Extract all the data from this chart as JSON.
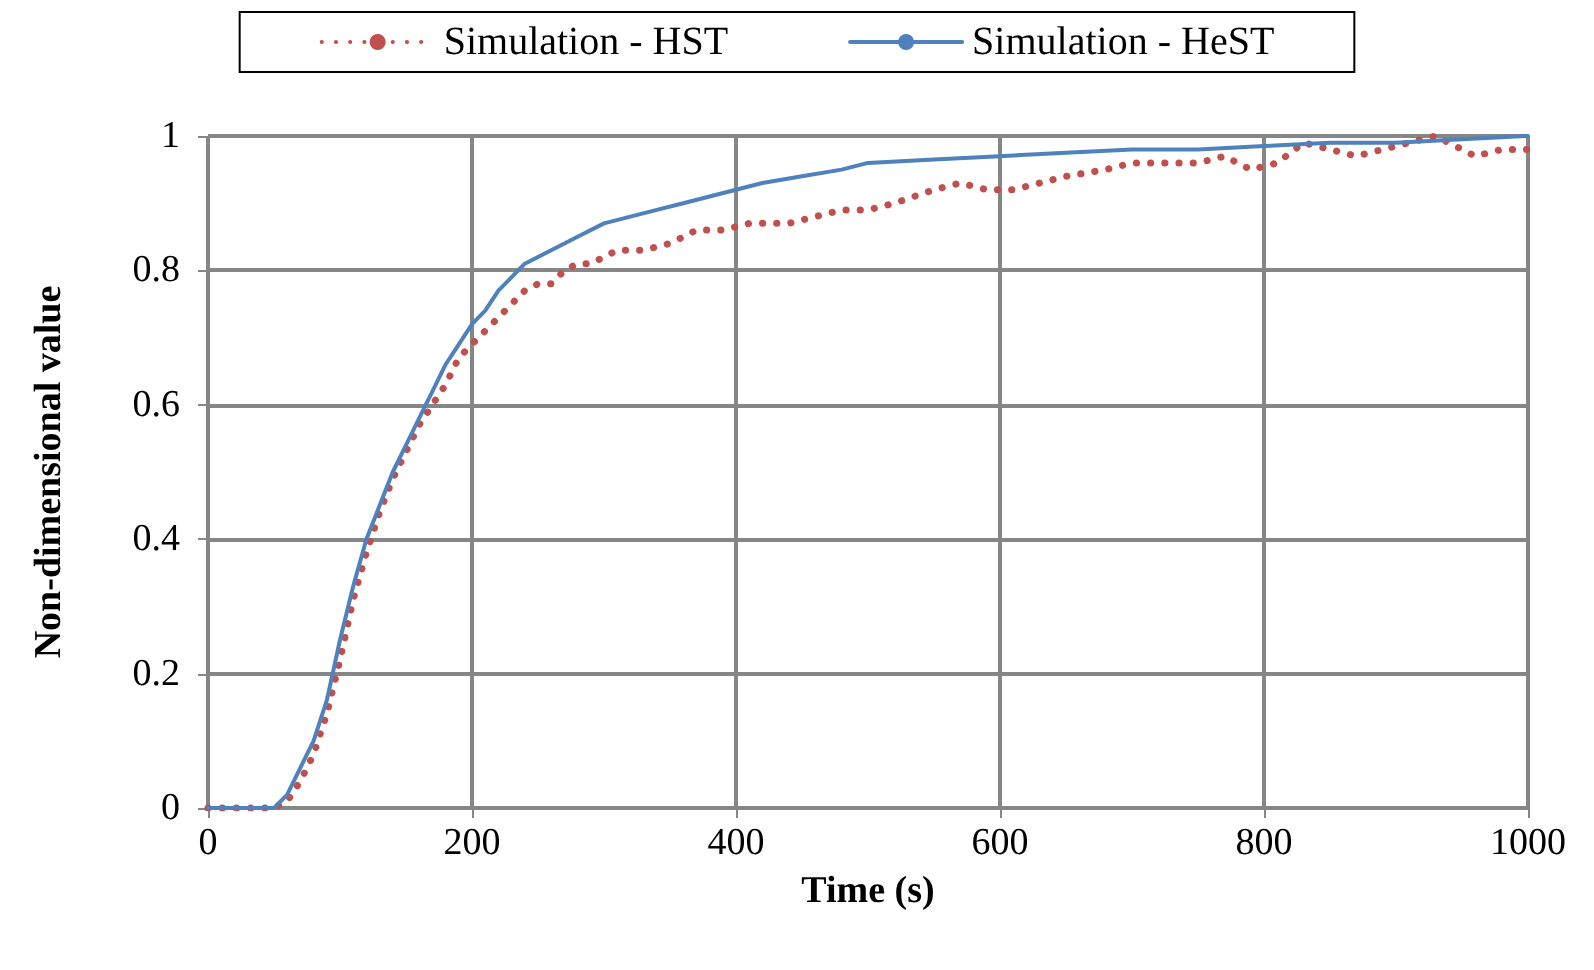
{
  "chart_data": {
    "type": "line",
    "xlabel": "Time (s)",
    "ylabel": "Non-dimensional value",
    "xlim": [
      0,
      1000
    ],
    "xticks": [
      0,
      200,
      400,
      600,
      800,
      1000
    ],
    "ylim": [
      0,
      1
    ],
    "yticks": [
      0,
      0.2,
      0.4,
      0.6,
      0.8,
      1
    ],
    "grid": true,
    "legend": "top",
    "marker": "none",
    "series": [
      {
        "name": "Simulation - HST",
        "color": "#c0504d",
        "line_style": "dotted",
        "x": [
          0,
          50,
          60,
          70,
          80,
          90,
          100,
          110,
          120,
          130,
          140,
          150,
          160,
          170,
          180,
          190,
          200,
          210,
          220,
          230,
          240,
          250,
          260,
          270,
          280,
          290,
          300,
          310,
          330,
          350,
          370,
          390,
          410,
          440,
          460,
          480,
          500,
          520,
          550,
          570,
          590,
          610,
          630,
          650,
          680,
          700,
          720,
          750,
          770,
          790,
          810,
          830,
          850,
          870,
          890,
          910,
          930,
          950,
          960,
          980,
          1000
        ],
        "values": [
          0,
          0,
          0.01,
          0.04,
          0.08,
          0.14,
          0.22,
          0.31,
          0.38,
          0.44,
          0.49,
          0.53,
          0.57,
          0.6,
          0.63,
          0.67,
          0.69,
          0.71,
          0.73,
          0.75,
          0.77,
          0.78,
          0.78,
          0.8,
          0.81,
          0.81,
          0.82,
          0.83,
          0.83,
          0.84,
          0.86,
          0.86,
          0.87,
          0.87,
          0.88,
          0.89,
          0.89,
          0.9,
          0.92,
          0.93,
          0.92,
          0.92,
          0.93,
          0.94,
          0.95,
          0.96,
          0.96,
          0.96,
          0.97,
          0.95,
          0.96,
          0.99,
          0.98,
          0.97,
          0.98,
          0.99,
          1,
          0.98,
          0.97,
          0.98,
          0.98
        ]
      },
      {
        "name": "Simulation - HeST",
        "color": "#4f81bd",
        "line_style": "solid",
        "x": [
          0,
          50,
          60,
          80,
          90,
          100,
          110,
          120,
          130,
          140,
          150,
          160,
          170,
          180,
          190,
          200,
          210,
          220,
          230,
          240,
          260,
          280,
          300,
          320,
          340,
          360,
          380,
          400,
          420,
          450,
          480,
          500,
          550,
          600,
          650,
          700,
          750,
          800,
          850,
          900,
          950,
          1000
        ],
        "values": [
          0,
          0,
          0.02,
          0.1,
          0.16,
          0.25,
          0.33,
          0.4,
          0.45,
          0.5,
          0.54,
          0.58,
          0.62,
          0.66,
          0.69,
          0.72,
          0.74,
          0.77,
          0.79,
          0.81,
          0.83,
          0.85,
          0.87,
          0.88,
          0.89,
          0.9,
          0.91,
          0.92,
          0.93,
          0.94,
          0.95,
          0.96,
          0.965,
          0.97,
          0.975,
          0.98,
          0.98,
          0.985,
          0.99,
          0.99,
          0.995,
          1
        ]
      }
    ]
  }
}
